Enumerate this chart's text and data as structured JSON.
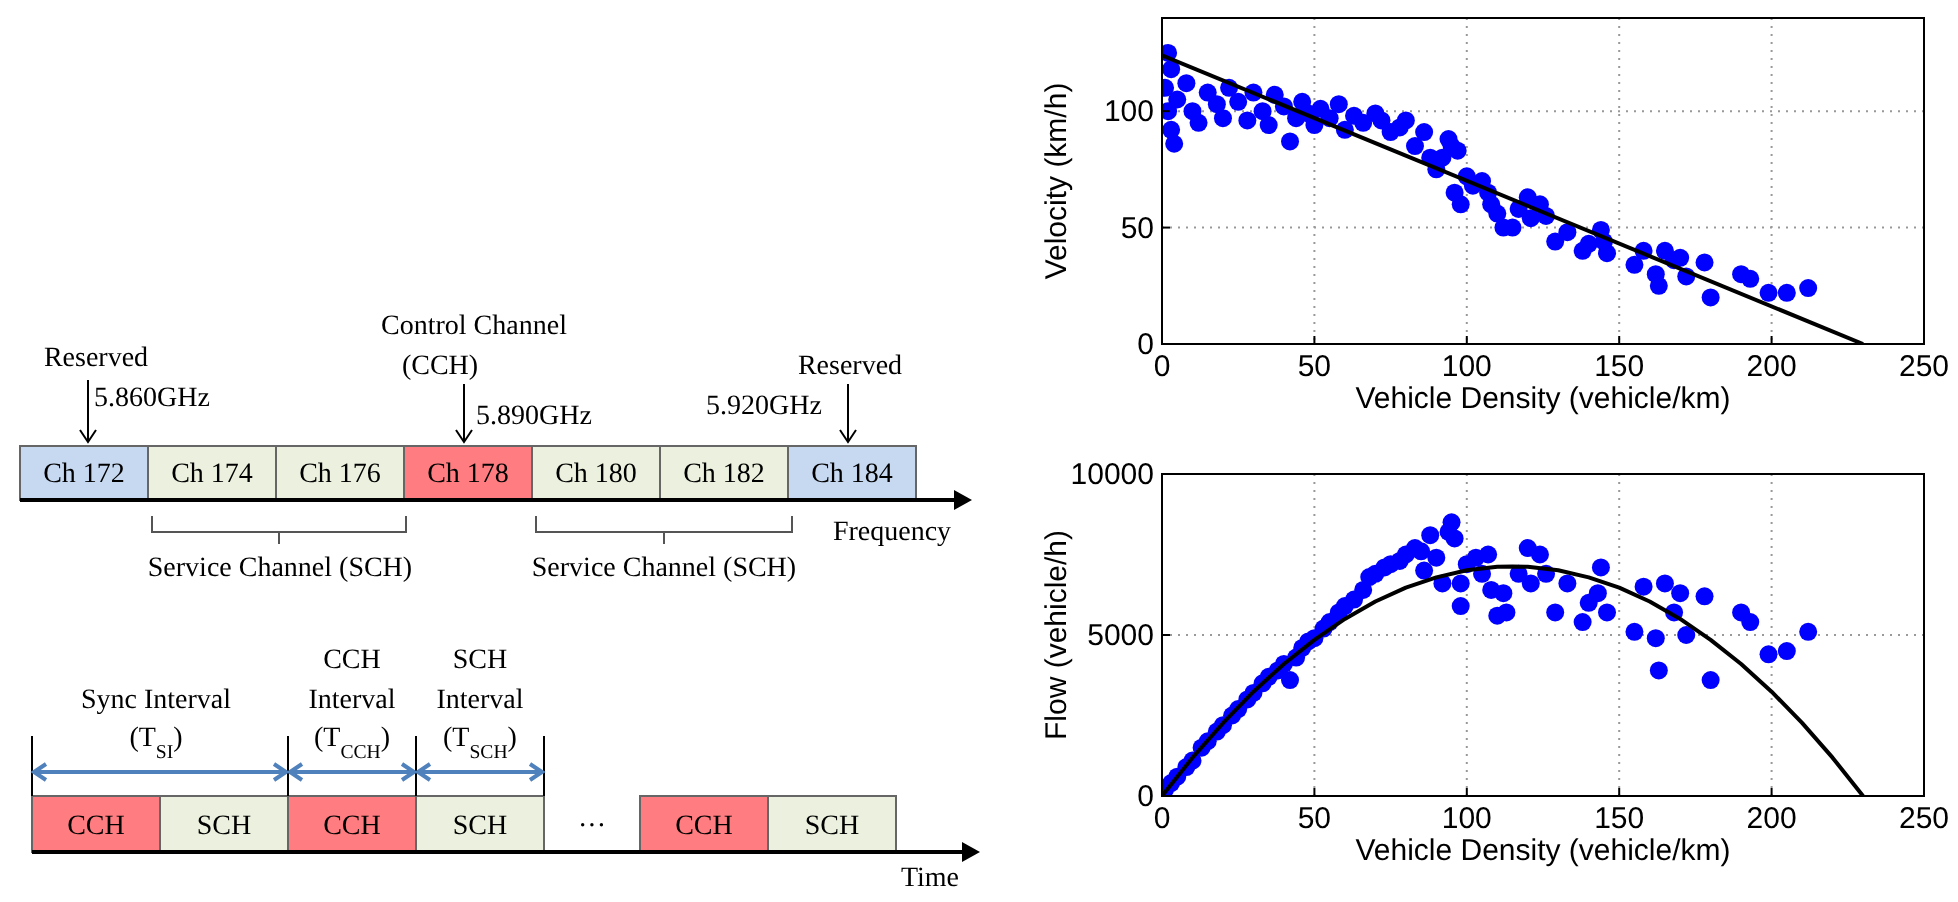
{
  "chart_data": [
    {
      "type": "other",
      "annotations": [
        "Reserved",
        "5.860GHz",
        "Control Channel",
        "(CCH)",
        "5.890GHz",
        "5.920GHz",
        "Reserved",
        "Ch 172",
        "Ch 174",
        "Ch 176",
        "Ch 178",
        "Ch 180",
        "Ch 182",
        "Ch 184",
        "Frequency",
        "Service Channel (SCH)",
        "Service Channel (SCH)",
        "Sync Interval",
        "(T$_{SI}$)",
        "CCH",
        "Interval",
        "(T$_{CCH}$)",
        "SCH",
        "Interval",
        "(T$_{SCH}$)",
        "CCH",
        "SCH",
        "CCH",
        "SCH",
        "···",
        "CCH",
        "SCH",
        "Time"
      ]
    },
    {
      "type": "scatter",
      "xlabel": "Vehicle Density (vehicle/km)",
      "ylabel": "Velocity (km/h)",
      "xlim": [
        0,
        250
      ],
      "ylim": [
        0,
        140
      ],
      "xticks": [
        0,
        50,
        100,
        150,
        200,
        250
      ],
      "yticks": [
        0,
        50,
        100
      ],
      "grid": true,
      "series": [
        {
          "type": "scatter",
          "marker": "circle",
          "color": "#0000ff",
          "x": [
            2,
            3,
            1,
            2,
            3,
            4,
            5,
            8,
            10,
            12,
            15,
            18,
            20,
            22,
            25,
            28,
            30,
            33,
            35,
            37,
            40,
            42,
            44,
            46,
            48,
            50,
            52,
            55,
            58,
            60,
            63,
            66,
            70,
            72,
            75,
            78,
            80,
            83,
            86,
            88,
            90,
            92,
            94,
            95,
            97,
            96,
            98,
            100,
            102,
            105,
            107,
            108,
            110,
            112,
            115,
            117,
            120,
            121,
            124,
            126,
            129,
            133,
            138,
            140,
            144,
            145,
            146,
            155,
            158,
            162,
            163,
            165,
            168,
            170,
            172,
            178,
            180,
            190,
            193,
            199,
            205,
            212
          ],
          "values": [
            125,
            118,
            110,
            100,
            92,
            86,
            105,
            112,
            100,
            95,
            108,
            103,
            97,
            110,
            104,
            96,
            108,
            100,
            94,
            107,
            102,
            87,
            97,
            104,
            99,
            94,
            101,
            97,
            103,
            92,
            98,
            95,
            99,
            96,
            91,
            93,
            96,
            85,
            91,
            80,
            75,
            80,
            88,
            85,
            83,
            65,
            60,
            72,
            68,
            70,
            65,
            60,
            56,
            50,
            50,
            58,
            63,
            54,
            60,
            55,
            44,
            48,
            40,
            43,
            49,
            44,
            39,
            34,
            40,
            30,
            25,
            40,
            36,
            37,
            29,
            35,
            20,
            30,
            28,
            22,
            22,
            24
          ]
        },
        {
          "type": "line",
          "marker": "none",
          "color": "#000000",
          "x": [
            0,
            230
          ],
          "values": [
            124,
            0
          ]
        }
      ]
    },
    {
      "type": "scatter",
      "xlabel": "Vehicle Density (vehicle/km)",
      "ylabel": "Flow (vehicle/h)",
      "xlim": [
        0,
        250
      ],
      "ylim": [
        0,
        10000
      ],
      "xticks": [
        0,
        50,
        100,
        150,
        200,
        250
      ],
      "yticks": [
        0,
        5000,
        10000
      ],
      "grid": true,
      "series": [
        {
          "type": "scatter",
          "marker": "circle",
          "color": "#0000ff",
          "x": [
            1,
            3,
            5,
            8,
            10,
            13,
            15,
            18,
            20,
            23,
            25,
            28,
            30,
            33,
            35,
            38,
            40,
            42,
            44,
            46,
            48,
            50,
            53,
            55,
            58,
            60,
            63,
            66,
            68,
            70,
            73,
            75,
            78,
            80,
            83,
            85,
            86,
            88,
            90,
            92,
            94,
            95,
            96,
            98,
            98,
            100,
            103,
            105,
            107,
            108,
            110,
            112,
            113,
            117,
            120,
            121,
            124,
            126,
            129,
            133,
            138,
            140,
            143,
            144,
            146,
            155,
            158,
            162,
            163,
            165,
            168,
            170,
            172,
            178,
            180,
            190,
            193,
            199,
            205,
            212
          ],
          "values": [
            200,
            400,
            600,
            900,
            1100,
            1500,
            1700,
            2000,
            2200,
            2500,
            2700,
            3000,
            3200,
            3500,
            3700,
            3900,
            4100,
            3600,
            4300,
            4600,
            4800,
            4900,
            5200,
            5400,
            5700,
            5900,
            6100,
            6400,
            6800,
            6900,
            7100,
            7200,
            7300,
            7500,
            7700,
            7600,
            7000,
            8100,
            7400,
            6600,
            8200,
            8500,
            8000,
            5900,
            6600,
            7200,
            7400,
            6900,
            7500,
            6400,
            5600,
            6300,
            5700,
            6900,
            7700,
            6600,
            7500,
            6900,
            5700,
            6600,
            5400,
            6000,
            6300,
            7100,
            5700,
            5100,
            6500,
            4900,
            3900,
            6600,
            5700,
            6300,
            5000,
            6200,
            3600,
            5700,
            5400,
            4400,
            4500,
            5100
          ]
        },
        {
          "type": "line",
          "marker": "none",
          "color": "#000000",
          "x": [
            0,
            10,
            20,
            30,
            40,
            50,
            60,
            70,
            80,
            90,
            100,
            110,
            115,
            120,
            130,
            140,
            150,
            160,
            170,
            180,
            190,
            200,
            210,
            220,
            230
          ],
          "values": [
            0,
            1190,
            2260,
            3240,
            4100,
            4850,
            5500,
            6040,
            6470,
            6790,
            7010,
            7120,
            7130,
            7120,
            7010,
            6790,
            6470,
            6040,
            5500,
            4850,
            4100,
            3240,
            2270,
            1190,
            0
          ]
        }
      ]
    }
  ]
}
